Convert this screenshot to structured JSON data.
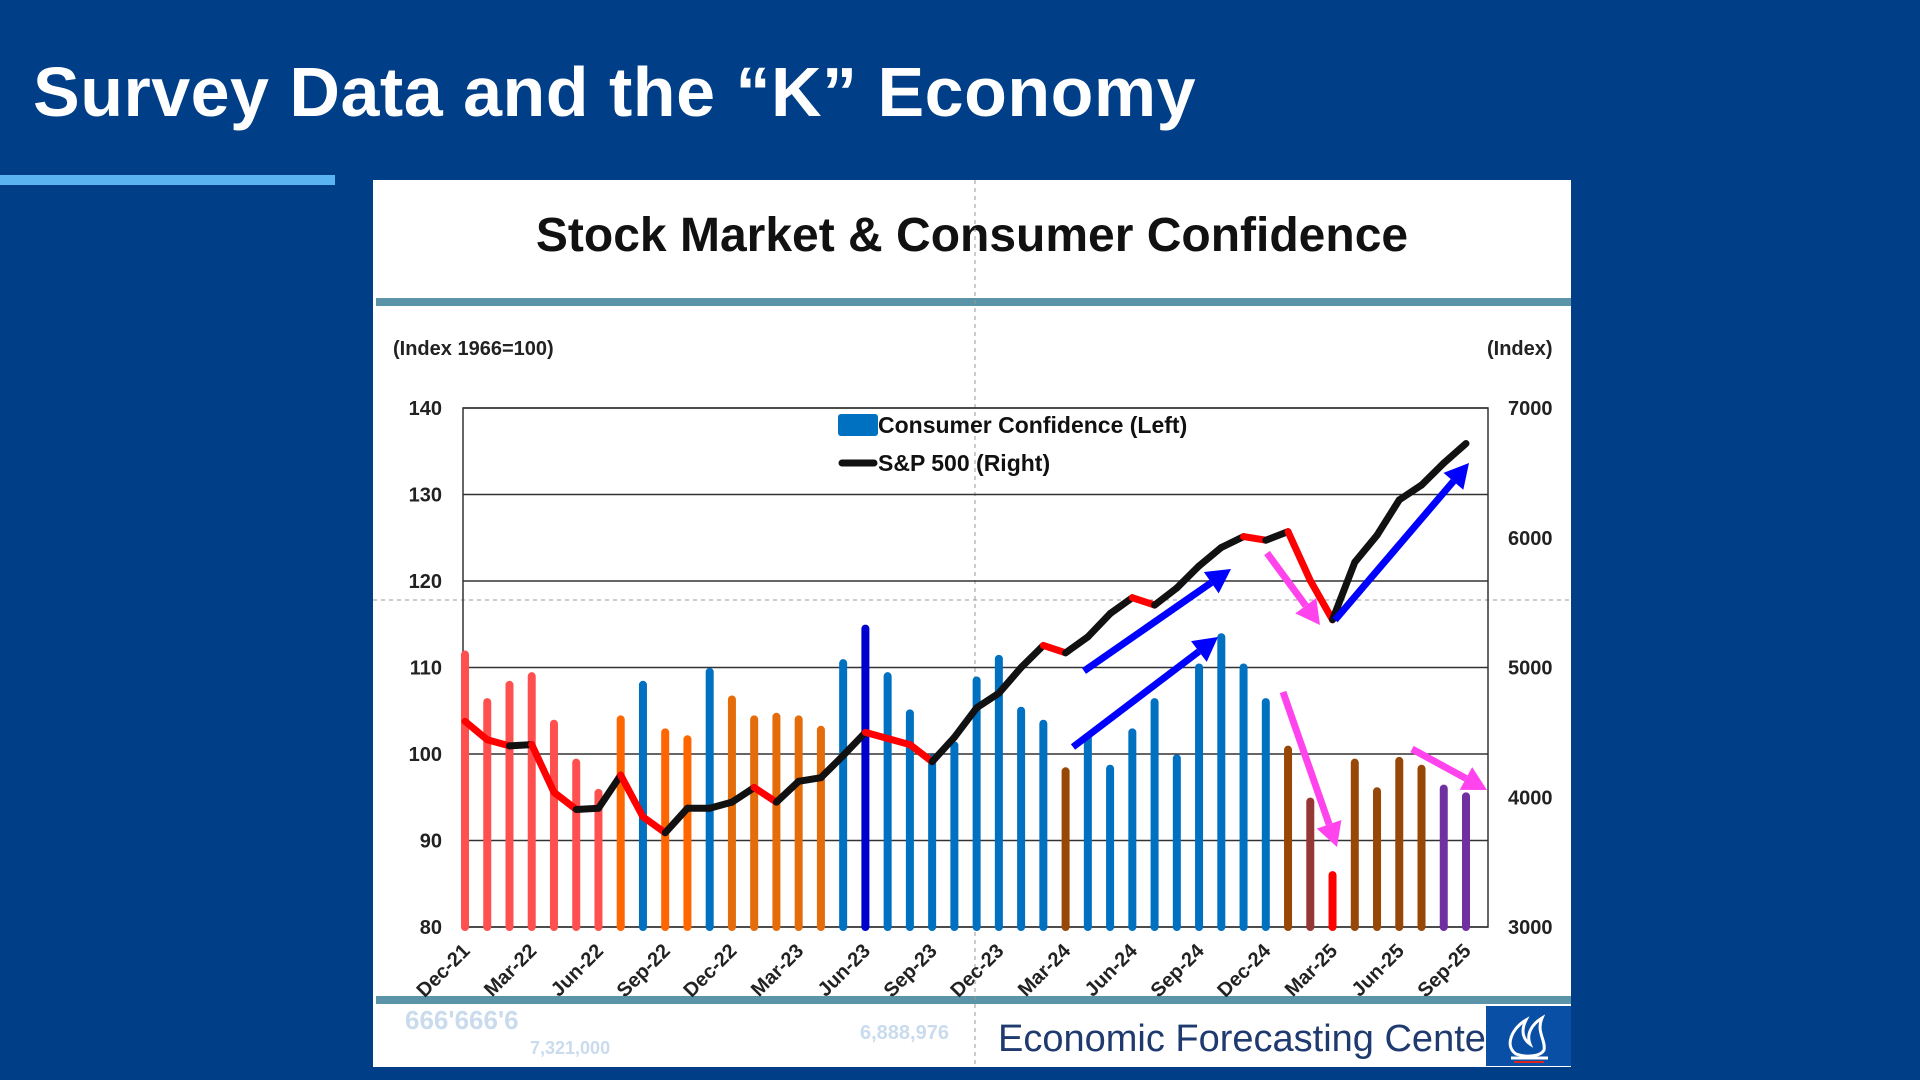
{
  "slide": {
    "title": "Survey Data and the “K” Economy"
  },
  "footer": {
    "text": "Economic Forecasting Center",
    "watermark_numbers": [
      "666'666'6",
      "7,321,000",
      "6,888,976"
    ]
  },
  "chart_data": {
    "type": "bar+line",
    "title": "Stock Market & Consumer Confidence",
    "ylabel_left": "(Index 1966=100)",
    "ylabel_right": "(Index)",
    "ylim_left": [
      80,
      140
    ],
    "ylim_right": [
      3000,
      7000
    ],
    "yticks_left": [
      "140",
      "130",
      "120",
      "110",
      "100",
      "90",
      "80"
    ],
    "yticks_right": [
      "7000",
      "6000",
      "5000",
      "4000",
      "3000"
    ],
    "grid": true,
    "legend": {
      "position": "top-center",
      "entries": [
        "Consumer Confidence (Left)",
        "S&P 500 (Right)"
      ]
    },
    "xtick_labels": [
      "Dec-21",
      "Mar-22",
      "Jun-22",
      "Sep-22",
      "Dec-22",
      "Mar-23",
      "Jun-23",
      "Sep-23",
      "Dec-23",
      "Mar-24",
      "Jun-24",
      "Sep-24",
      "Dec-24",
      "Mar-25",
      "Jun-25",
      "Sep-25"
    ],
    "series": [
      {
        "name": "Consumer Confidence (Left)",
        "type": "bar",
        "axis": "left",
        "values": [
          111.5,
          106,
          108,
          109,
          103.5,
          99,
          95.5,
          104,
          108,
          102.5,
          101.7,
          109.5,
          106.3,
          104,
          104.3,
          104,
          102.8,
          110.5,
          114.5,
          109,
          104.7,
          99.5,
          101,
          108.5,
          111,
          105,
          103.5,
          98,
          102,
          98.3,
          102.5,
          106,
          99.5,
          110,
          113.5,
          110,
          106,
          100.5,
          94.5,
          86,
          99,
          95.7,
          99.2,
          98.3,
          96,
          95.1
        ],
        "colors": [
          "#ff5050",
          "#ff5050",
          "#ff5050",
          "#ff5050",
          "#ff5050",
          "#ff5050",
          "#ff5050",
          "#ff6600",
          "#0070c0",
          "#ff6600",
          "#ff6600",
          "#0070c0",
          "#e46c0a",
          "#e46c0a",
          "#e46c0a",
          "#e46c0a",
          "#e46c0a",
          "#0070c0",
          "#0000cc",
          "#0070c0",
          "#0070c0",
          "#0070c0",
          "#0070c0",
          "#0070c0",
          "#0070c0",
          "#0070c0",
          "#0070c0",
          "#974706",
          "#0070c0",
          "#0070c0",
          "#0070c0",
          "#0070c0",
          "#0070c0",
          "#0070c0",
          "#0070c0",
          "#0070c0",
          "#0070c0",
          "#974706",
          "#953735",
          "#ff0000",
          "#974706",
          "#974706",
          "#974706",
          "#974706",
          "#7030a0",
          "#7030a0"
        ]
      },
      {
        "name": "S&P 500 (Right)",
        "type": "line",
        "axis": "right",
        "values": [
          4585,
          4443,
          4396,
          4406,
          4038,
          3906,
          3915,
          4170,
          3849,
          3726,
          3915,
          3915,
          3962,
          4075,
          3962,
          4123,
          4151,
          4321,
          4500,
          4453,
          4406,
          4274,
          4462,
          4689,
          4802,
          5000,
          5170,
          5113,
          5236,
          5415,
          5538,
          5481,
          5613,
          5783,
          5925,
          6009,
          5981,
          6047,
          5670,
          5368,
          5811,
          6019,
          6292,
          6406,
          6575,
          6726
        ],
        "color": "#111111",
        "decline_color": "#ff0000"
      }
    ],
    "annotation_colors": {
      "up_arrows": "#0000ff",
      "down_arrows": "#ff44ee"
    }
  }
}
